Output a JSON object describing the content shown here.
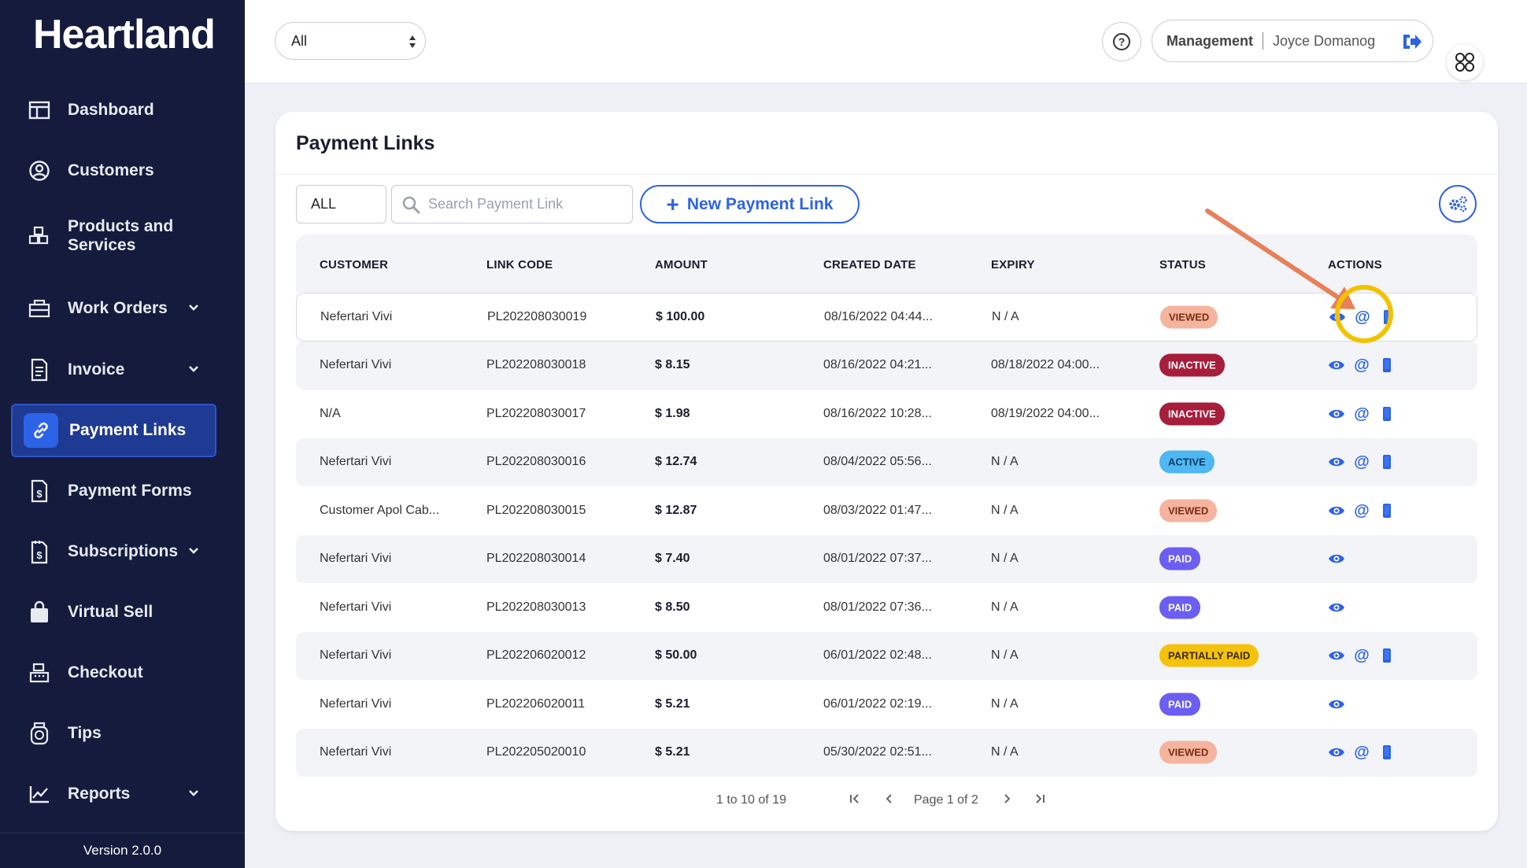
{
  "brand": {
    "name": "Heartland"
  },
  "sidebar": {
    "items": [
      {
        "label": "Dashboard",
        "icon": "dashboard-icon",
        "has_chevron": false
      },
      {
        "label": "Customers",
        "icon": "customers-icon",
        "has_chevron": false
      },
      {
        "label": "Products and Services",
        "icon": "products-icon",
        "has_chevron": false
      },
      {
        "label": "Work Orders",
        "icon": "work-orders-icon",
        "has_chevron": true
      },
      {
        "label": "Invoice",
        "icon": "invoice-icon",
        "has_chevron": true
      },
      {
        "label": "Payment Links",
        "icon": "link-icon",
        "has_chevron": false,
        "active": true
      },
      {
        "label": "Payment Forms",
        "icon": "payment-forms-icon",
        "has_chevron": false
      },
      {
        "label": "Subscriptions",
        "icon": "subscriptions-icon",
        "has_chevron": true
      },
      {
        "label": "Virtual Sell",
        "icon": "shopping-bag-icon",
        "has_chevron": false
      },
      {
        "label": "Checkout",
        "icon": "register-icon",
        "has_chevron": false
      },
      {
        "label": "Tips",
        "icon": "tips-jar-icon",
        "has_chevron": false
      },
      {
        "label": "Reports",
        "icon": "reports-icon",
        "has_chevron": true
      }
    ],
    "version": "Version 2.0.0"
  },
  "topbar": {
    "location_select": "All",
    "role": "Management",
    "user_name": "Joyce Domanog"
  },
  "page": {
    "title": "Payment Links",
    "filter_value": "ALL",
    "search_placeholder": "Search Payment Link",
    "new_button_label": "New Payment Link"
  },
  "table": {
    "headers": [
      "CUSTOMER",
      "LINK CODE",
      "AMOUNT",
      "CREATED DATE",
      "EXPIRY",
      "STATUS",
      "ACTIONS"
    ],
    "rows": [
      {
        "customer": "Nefertari Vivi",
        "link_code": "PL202208030019",
        "amount": "$ 100.00",
        "created": "08/16/2022 04:44...",
        "expiry": "N / A",
        "status": "VIEWED",
        "status_kind": "viewed",
        "actions": [
          "view",
          "email",
          "sms"
        ]
      },
      {
        "customer": "Nefertari Vivi",
        "link_code": "PL202208030018",
        "amount": "$ 8.15",
        "created": "08/16/2022 04:21...",
        "expiry": "08/18/2022 04:00...",
        "status": "INACTIVE",
        "status_kind": "inactive",
        "actions": [
          "view",
          "email",
          "sms"
        ]
      },
      {
        "customer": "N/A",
        "link_code": "PL202208030017",
        "amount": "$ 1.98",
        "created": "08/16/2022 10:28...",
        "expiry": "08/19/2022 04:00...",
        "status": "INACTIVE",
        "status_kind": "inactive",
        "actions": [
          "view",
          "email",
          "sms"
        ]
      },
      {
        "customer": "Nefertari Vivi",
        "link_code": "PL202208030016",
        "amount": "$ 12.74",
        "created": "08/04/2022 05:56...",
        "expiry": "N / A",
        "status": "ACTIVE",
        "status_kind": "active",
        "actions": [
          "view",
          "email",
          "sms"
        ]
      },
      {
        "customer": "Customer Apol Cab...",
        "link_code": "PL202208030015",
        "amount": "$ 12.87",
        "created": "08/03/2022 01:47...",
        "expiry": "N / A",
        "status": "VIEWED",
        "status_kind": "viewed",
        "actions": [
          "view",
          "email",
          "sms"
        ]
      },
      {
        "customer": "Nefertari Vivi",
        "link_code": "PL202208030014",
        "amount": "$ 7.40",
        "created": "08/01/2022 07:37...",
        "expiry": "N / A",
        "status": "PAID",
        "status_kind": "paid",
        "actions": [
          "view"
        ]
      },
      {
        "customer": "Nefertari Vivi",
        "link_code": "PL202208030013",
        "amount": "$ 8.50",
        "created": "08/01/2022 07:36...",
        "expiry": "N / A",
        "status": "PAID",
        "status_kind": "paid",
        "actions": [
          "view"
        ]
      },
      {
        "customer": "Nefertari Vivi",
        "link_code": "PL202206020012",
        "amount": "$ 50.00",
        "created": "06/01/2022 02:48...",
        "expiry": "N / A",
        "status": "PARTIALLY PAID",
        "status_kind": "partial",
        "actions": [
          "view",
          "email",
          "sms"
        ]
      },
      {
        "customer": "Nefertari Vivi",
        "link_code": "PL202206020011",
        "amount": "$ 5.21",
        "created": "06/01/2022 02:19...",
        "expiry": "N / A",
        "status": "PAID",
        "status_kind": "paid",
        "actions": [
          "view"
        ]
      },
      {
        "customer": "Nefertari Vivi",
        "link_code": "PL202205020010",
        "amount": "$ 5.21",
        "created": "05/30/2022 02:51...",
        "expiry": "N / A",
        "status": "VIEWED",
        "status_kind": "viewed",
        "actions": [
          "view",
          "email",
          "sms"
        ]
      }
    ]
  },
  "pagination": {
    "range": "1 to 10 of 19",
    "page_label": "Page 1 of 2"
  },
  "colors": {
    "sidebar_bg": "#141b3d",
    "accent": "#2d63e6",
    "annotation_arrow": "#e8805a",
    "annotation_circle": "#f2c200"
  }
}
